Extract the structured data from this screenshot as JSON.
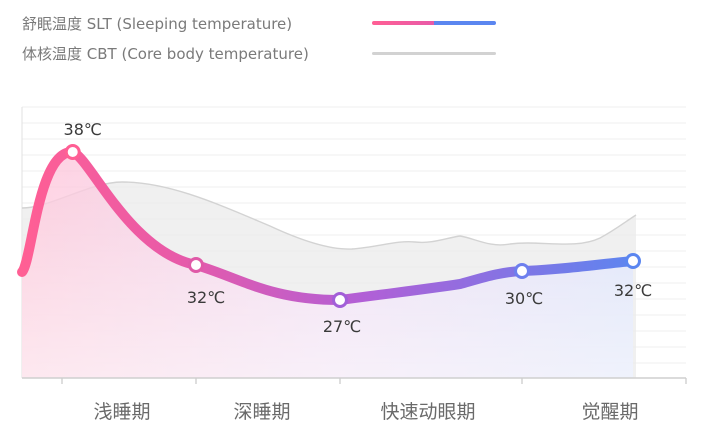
{
  "legend": {
    "slt": "舒眠温度 SLT (Sleeping temperature)",
    "cbt": "体核温度 CBT (Core body temperature)"
  },
  "colors": {
    "slt_start": "#ff5f94",
    "slt_mid": "#c35fd2",
    "slt_end": "#5b86f0",
    "cbt": "#c8c8c8",
    "grid": "#ececec",
    "axis": "#cfcfcf"
  },
  "chart_data": {
    "type": "line",
    "categories": [
      "浅睡期",
      "深睡期",
      "快速动眼期",
      "觉醒期"
    ],
    "series": [
      {
        "name": "舒眠温度 SLT (Sleeping temperature)",
        "points": [
          {
            "x": 0.08,
            "y": 38,
            "label": "38℃"
          },
          {
            "x": 1.0,
            "y": 32,
            "label": "32℃"
          },
          {
            "x": 2.0,
            "y": 27,
            "label": "27℃"
          },
          {
            "x": 3.3,
            "y": 30,
            "label": "30℃"
          },
          {
            "x": 4.0,
            "y": 32,
            "label": "32℃"
          }
        ]
      },
      {
        "name": "体核温度 CBT (Core body temperature)"
      }
    ]
  }
}
